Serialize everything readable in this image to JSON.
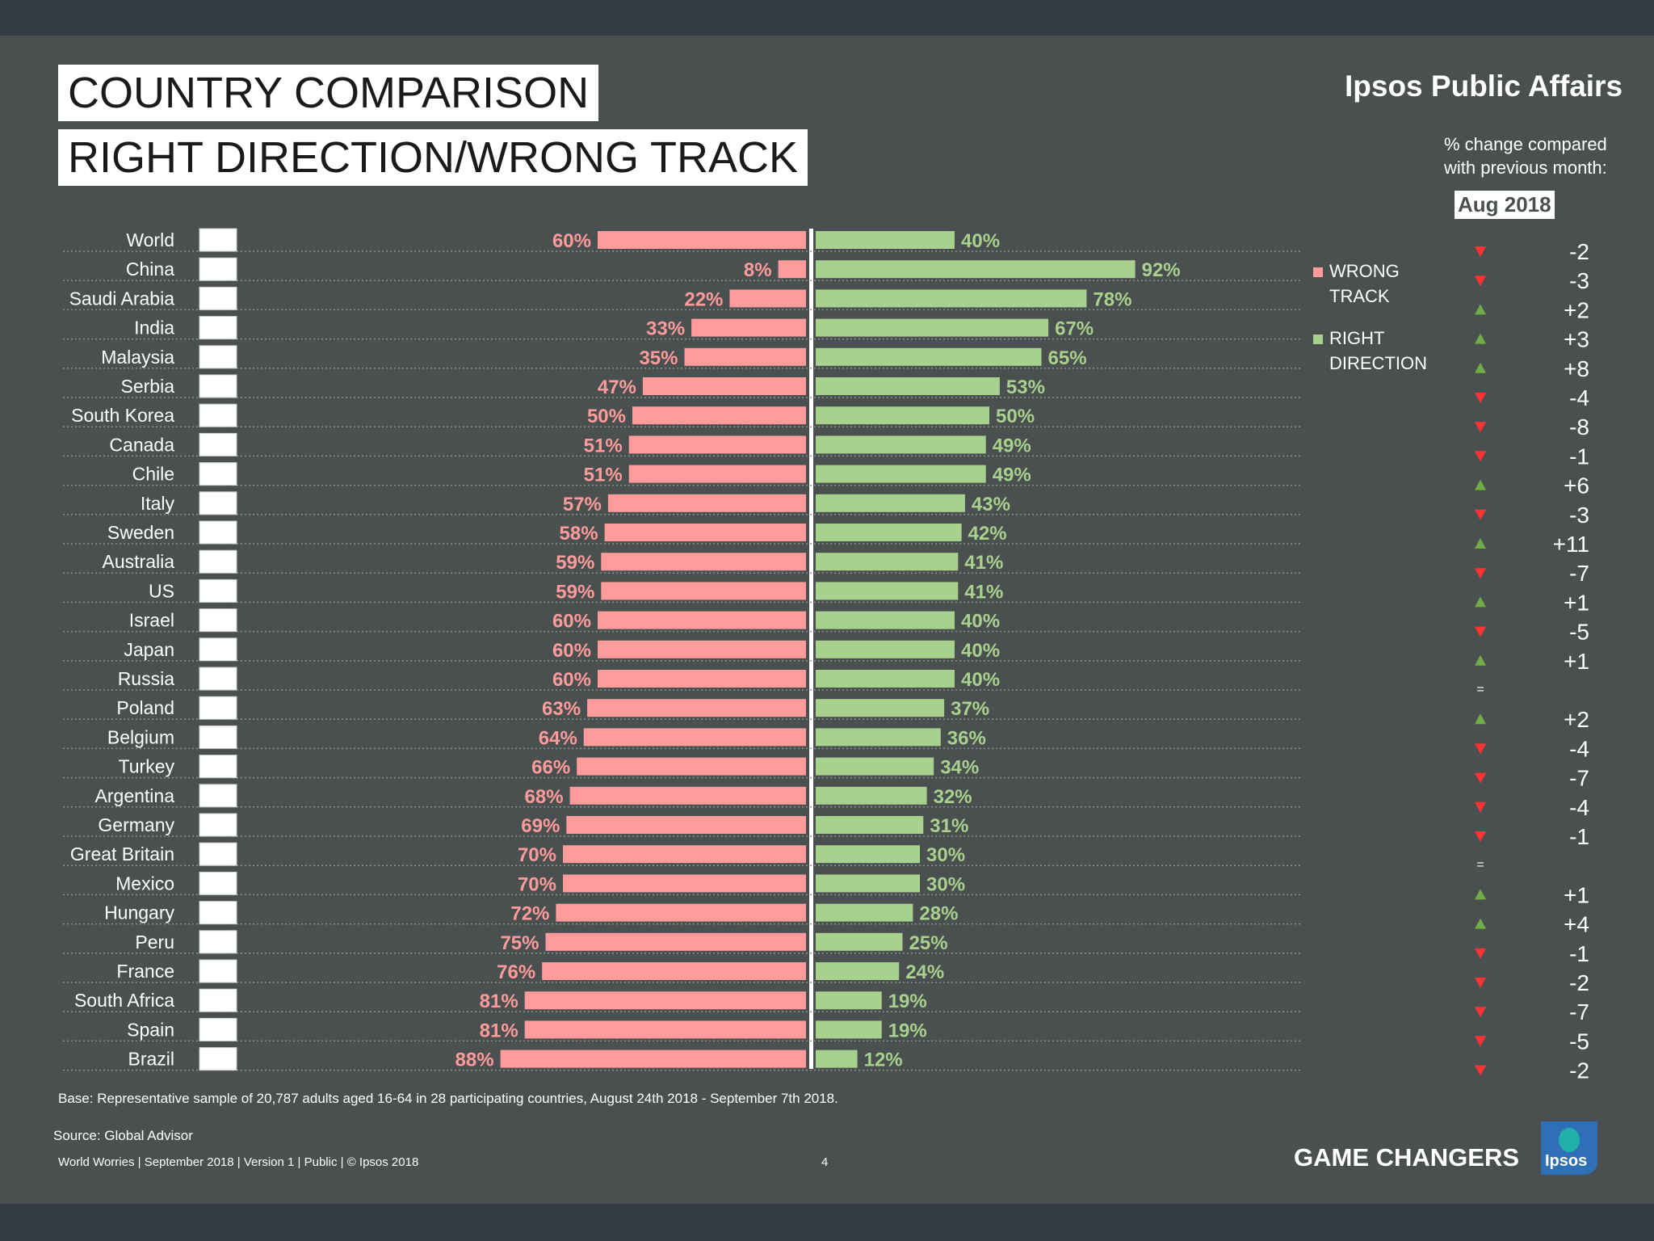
{
  "header": {
    "title_line1": "COUNTRY COMPARISON",
    "title_line2": "RIGHT DIRECTION/WRONG TRACK",
    "brand": "Ipsos Public Affairs",
    "change_caption": "% change compared with previous month:",
    "period": "Aug 2018"
  },
  "legend": {
    "wrong": "WRONG TRACK",
    "right": "RIGHT DIRECTION"
  },
  "colors": {
    "wrong": "#ff9b9b",
    "right": "#a9d18e",
    "up": "#70ad47",
    "down": "#ff3333",
    "background": "#4a4f50"
  },
  "chart_data": {
    "type": "bar",
    "orientation": "diverging-horizontal",
    "categories": [
      "World",
      "China",
      "Saudi Arabia",
      "India",
      "Malaysia",
      "Serbia",
      "South Korea",
      "Canada",
      "Chile",
      "Italy",
      "Sweden",
      "Australia",
      "US",
      "Israel",
      "Japan",
      "Russia",
      "Poland",
      "Belgium",
      "Turkey",
      "Argentina",
      "Germany",
      "Great Britain",
      "Mexico",
      "Hungary",
      "Peru",
      "France",
      "South Africa",
      "Spain",
      "Brazil"
    ],
    "series": [
      {
        "name": "WRONG TRACK",
        "values": [
          60,
          8,
          22,
          33,
          35,
          47,
          50,
          51,
          51,
          57,
          58,
          59,
          59,
          60,
          60,
          60,
          63,
          64,
          66,
          68,
          69,
          70,
          70,
          72,
          75,
          76,
          81,
          81,
          88
        ]
      },
      {
        "name": "RIGHT DIRECTION",
        "values": [
          40,
          92,
          78,
          67,
          65,
          53,
          50,
          49,
          49,
          43,
          42,
          41,
          41,
          40,
          40,
          40,
          37,
          36,
          34,
          32,
          31,
          30,
          30,
          28,
          25,
          24,
          19,
          19,
          12
        ]
      }
    ],
    "value_suffix": "%",
    "change_vs_previous_month": {
      "label": "Aug 2018",
      "values": [
        "-2",
        "-3",
        "+2",
        "+3",
        "+8",
        "-4",
        "-8",
        "-1",
        "+6",
        "-3",
        "+11",
        "-7",
        "+1",
        "-5",
        "+1",
        "=",
        "+2",
        "-4",
        "-7",
        "-4",
        "-1",
        "=",
        "+1",
        "+4",
        "-1",
        "-2",
        "-7",
        "-5",
        "-2"
      ]
    },
    "xlim": [
      0,
      100
    ]
  },
  "footer": {
    "base": "Base: Representative sample of 20,787 adults aged 16-64 in 28 participating countries, August 24th 2018 - September 7th 2018.",
    "source": "Source: Global Advisor",
    "left": "World Worries | September 2018 |  Version 1  |  Public | © Ipsos 2018",
    "page": "4",
    "tagline": "GAME CHANGERS",
    "logo_text": "Ipsos"
  }
}
